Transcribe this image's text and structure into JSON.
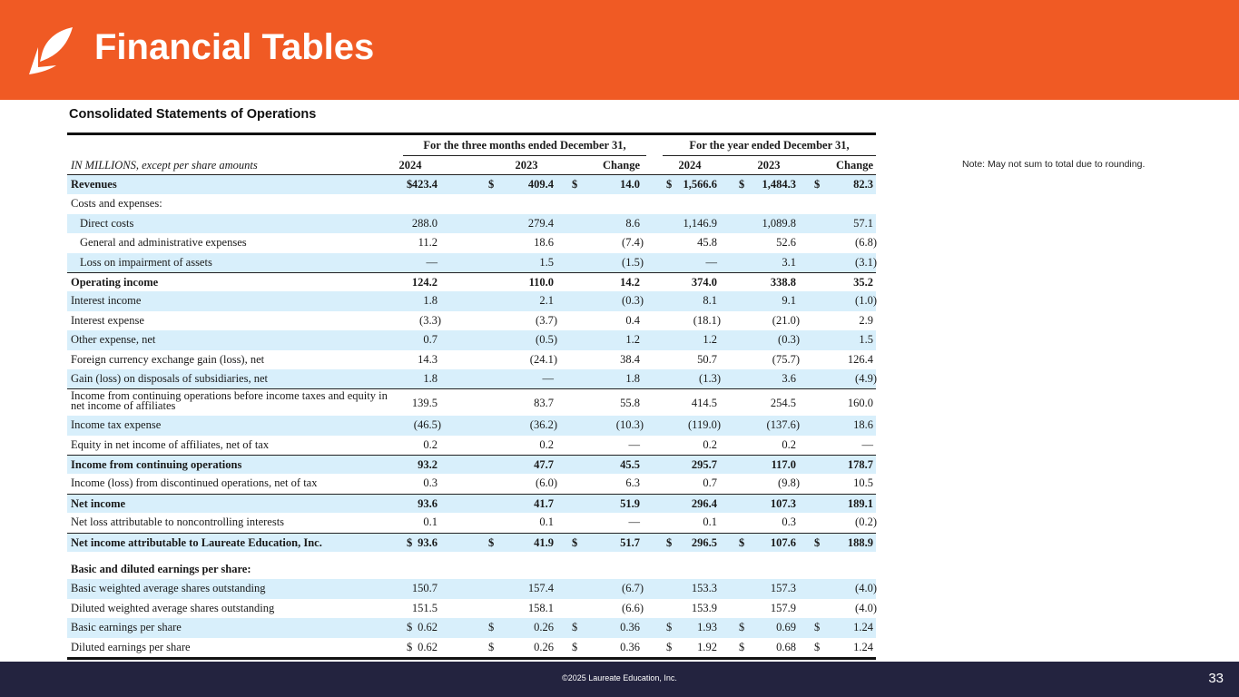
{
  "header": {
    "title": "Financial Tables"
  },
  "subtitle": "Consolidated  Statements  of  Operations",
  "note": "Note:  May not sum to total due to rounding.",
  "table": {
    "group_headers": [
      "For the three months  ended December 31,",
      "For the year ended December 31,"
    ],
    "units_label": "IN MILLIONS, except per share amounts",
    "columns": [
      "2024",
      "2023",
      "Change",
      "2024",
      "2023",
      "Change"
    ],
    "currency_symbol": "$",
    "rows": [
      {
        "label": "Revenues",
        "values": [
          "423.4",
          "409.4",
          "14.0",
          "1,566.6",
          "1,484.3",
          "82.3"
        ],
        "dollar": true
      },
      {
        "label": "Costs and expenses:",
        "values": [
          "",
          "",
          "",
          "",
          "",
          ""
        ]
      },
      {
        "label": "Direct costs",
        "values": [
          "288.0",
          "279.4",
          "8.6",
          "1,146.9",
          "1,089.8",
          "57.1"
        ]
      },
      {
        "label": "General and administrative expenses",
        "values": [
          "11.2",
          "18.6",
          "(7.4)",
          "45.8",
          "52.6",
          "(6.8)"
        ]
      },
      {
        "label": "Loss on impairment of assets",
        "values": [
          "—",
          "1.5",
          "(1.5)",
          "—",
          "3.1",
          "(3.1)"
        ]
      },
      {
        "label": "Operating income",
        "values": [
          "124.2",
          "110.0",
          "14.2",
          "374.0",
          "338.8",
          "35.2"
        ]
      },
      {
        "label": "Interest income",
        "values": [
          "1.8",
          "2.1",
          "(0.3)",
          "8.1",
          "9.1",
          "(1.0)"
        ]
      },
      {
        "label": "Interest expense",
        "values": [
          "(3.3)",
          "(3.7)",
          "0.4",
          "(18.1)",
          "(21.0)",
          "2.9"
        ]
      },
      {
        "label": "Other expense, net",
        "values": [
          "0.7",
          "(0.5)",
          "1.2",
          "1.2",
          "(0.3)",
          "1.5"
        ]
      },
      {
        "label": "Foreign currency exchange  gain (loss), net",
        "values": [
          "14.3",
          "(24.1)",
          "38.4",
          "50.7",
          "(75.7)",
          "126.4"
        ]
      },
      {
        "label": "Gain (loss) on disposals of subsidiaries, net",
        "values": [
          "1.8",
          "—",
          "1.8",
          "(1.3)",
          "3.6",
          "(4.9)"
        ]
      },
      {
        "label": "Income  from continuing  operations before income taxes and equity in net income of affiliates",
        "values": [
          "139.5",
          "83.7",
          "55.8",
          "414.5",
          "254.5",
          "160.0"
        ]
      },
      {
        "label": "Income  tax expense",
        "values": [
          "(46.5)",
          "(36.2)",
          "(10.3)",
          "(119.0)",
          "(137.6)",
          "18.6"
        ]
      },
      {
        "label": "Equity in net income of affiliates, net of tax",
        "values": [
          "0.2",
          "0.2",
          "—",
          "0.2",
          "0.2",
          "—"
        ]
      },
      {
        "label": "Income  from continuing  operations",
        "values": [
          "93.2",
          "47.7",
          "45.5",
          "295.7",
          "117.0",
          "178.7"
        ]
      },
      {
        "label": "Income  (loss) from discontinued operations, net of tax",
        "values": [
          "0.3",
          "(6.0)",
          "6.3",
          "0.7",
          "(9.8)",
          "10.5"
        ]
      },
      {
        "label": "Net income",
        "values": [
          "93.6",
          "41.7",
          "51.9",
          "296.4",
          "107.3",
          "189.1"
        ]
      },
      {
        "label": "Net loss attributable to noncontrolling  interests",
        "values": [
          "0.1",
          "0.1",
          "—",
          "0.1",
          "0.3",
          "(0.2)"
        ]
      },
      {
        "label": "Net income  attributable  to Laureate Education,  Inc.",
        "values": [
          "93.6",
          "41.9",
          "51.7",
          "296.5",
          "107.6",
          "188.9"
        ],
        "dollar": true
      }
    ],
    "eps_header": "Basic and diluted  earnings  per share:",
    "eps_rows": [
      {
        "label": "Basic weighted average shares outstanding",
        "values": [
          "150.7",
          "157.4",
          "(6.7)",
          "153.3",
          "157.3",
          "(4.0)"
        ]
      },
      {
        "label": "Diluted weighted average shares outstanding",
        "values": [
          "151.5",
          "158.1",
          "(6.6)",
          "153.9",
          "157.9",
          "(4.0)"
        ]
      },
      {
        "label": "Basic earnings per share",
        "values": [
          "0.62",
          "0.26",
          "0.36",
          "1.93",
          "0.69",
          "1.24"
        ],
        "dollar": true
      },
      {
        "label": "Diluted earnings per share",
        "values": [
          "0.62",
          "0.26",
          "0.36",
          "1.92",
          "0.68",
          "1.24"
        ],
        "dollar": true
      }
    ]
  },
  "footer": {
    "copyright": "©2025 Laureate Education, Inc.",
    "page_number": "33"
  }
}
